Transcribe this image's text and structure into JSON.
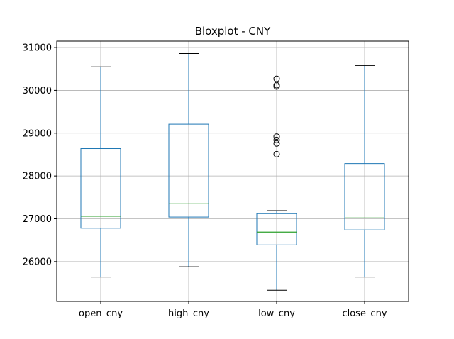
{
  "chart_data": {
    "type": "boxplot",
    "title": "Bloxplot - CNY",
    "xlabel": "",
    "ylabel": "",
    "ylim": [
      25070,
      31150
    ],
    "yticks": [
      26000,
      27000,
      28000,
      29000,
      30000,
      31000
    ],
    "grid": true,
    "categories": [
      "open_cny",
      "high_cny",
      "low_cny",
      "close_cny"
    ],
    "boxes": [
      {
        "name": "open_cny",
        "whislo": 25640,
        "q1": 26780,
        "med": 27060,
        "q3": 28640,
        "whishi": 30550,
        "fliers": []
      },
      {
        "name": "high_cny",
        "whislo": 25880,
        "q1": 27040,
        "med": 27350,
        "q3": 29210,
        "whishi": 30860,
        "fliers": []
      },
      {
        "name": "low_cny",
        "whislo": 25330,
        "q1": 26390,
        "med": 26690,
        "q3": 27120,
        "whishi": 27190,
        "fliers": [
          28510,
          28760,
          28840,
          28920,
          30090,
          30120,
          30270
        ]
      },
      {
        "name": "close_cny",
        "whislo": 25640,
        "q1": 26740,
        "med": 27020,
        "q3": 28290,
        "whishi": 30580,
        "fliers": []
      }
    ],
    "colors": {
      "box": "#1f77b4",
      "median": "#2ca02c",
      "whisker": "#1f77b4",
      "cap": "#000000",
      "grid": "#b0b0b0",
      "flier": "#000000"
    }
  }
}
